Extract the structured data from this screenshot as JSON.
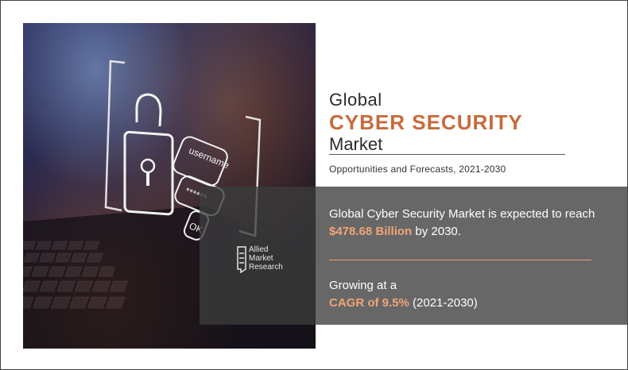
{
  "headline": {
    "line1": "Global",
    "line2": "CYBER SECURITY",
    "line3": "Market"
  },
  "subtitle": "Opportunities and Forecasts, 2021-2030",
  "stat1": {
    "before": "Global Cyber Security Market is expected to reach ",
    "value": "$478.68 Billion",
    "after": " by 2030."
  },
  "stat2": {
    "line1": "Growing at a",
    "highlight": "CAGR of 9.5%",
    "after": " (2021-2030)"
  },
  "logo": {
    "line1": "Allied",
    "line2": "Market",
    "line3": "Research"
  },
  "photo": {
    "username_label": "username",
    "password_mask": "******",
    "ok_label": "OK"
  },
  "colors": {
    "accent": "#c86a3c",
    "highlight": "#f0a477",
    "overlay": "#3c3c3c"
  }
}
